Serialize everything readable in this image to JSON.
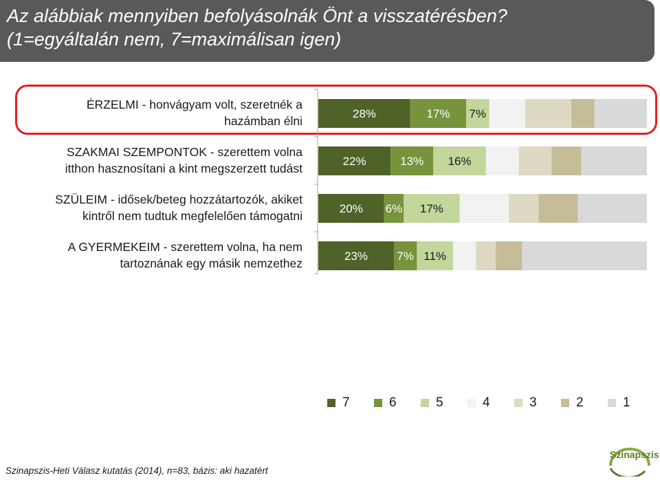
{
  "title": {
    "line1": "Az alábbiak mennyiben befolyásolnák Önt a visszatérésben?",
    "line2": "(1=egyáltalán nem, 7=maximálisan igen)"
  },
  "chart_data": {
    "type": "bar",
    "orientation": "horizontal-stacked-100",
    "categories": [
      [
        "ÉRZELMI - honvágyam volt, szeretnék a",
        "hazámban élni"
      ],
      [
        "SZAKMAI SZEMPONTOK - szerettem volna",
        "itthon hasznosítani a kint megszerzett tudást"
      ],
      [
        "SZÜLEIM - idősek/beteg hozzátartozók, akiket",
        "kintről nem tudtuk megfelelően támogatni"
      ],
      [
        "A GYERMEKEIM - szerettem volna, ha nem",
        "tartoznának egy másik nemzethez"
      ]
    ],
    "series": [
      {
        "name": "7",
        "color": "#4f6228",
        "values": [
          28,
          22,
          20,
          23
        ],
        "labels": [
          "28%",
          "22%",
          "20%",
          "23%"
        ]
      },
      {
        "name": "6",
        "color": "#77933c",
        "values": [
          17,
          13,
          6,
          7
        ],
        "labels": [
          "17%",
          "13%",
          "6%",
          "7%"
        ]
      },
      {
        "name": "5",
        "color": "#c3d69b",
        "values": [
          7,
          16,
          17,
          11
        ],
        "labels": [
          "7%",
          "16%",
          "17%",
          "11%"
        ]
      },
      {
        "name": "4",
        "color": "#f2f2f2",
        "values": [
          11,
          10,
          15,
          7
        ],
        "labels": [
          "",
          "",
          "",
          ""
        ]
      },
      {
        "name": "3",
        "color": "#ddd9c3",
        "values": [
          14,
          10,
          9,
          6
        ],
        "labels": [
          "",
          "",
          "",
          ""
        ]
      },
      {
        "name": "2",
        "color": "#c4bd97",
        "values": [
          7,
          9,
          12,
          8
        ],
        "labels": [
          "",
          "",
          "",
          ""
        ]
      },
      {
        "name": "1",
        "color": "#d9d9d9",
        "values": [
          16,
          20,
          21,
          38
        ],
        "labels": [
          "",
          "",
          "",
          ""
        ]
      }
    ],
    "xlim": [
      0,
      100
    ],
    "legend_position": "bottom",
    "highlighted_category": 0
  },
  "footnote": "Szinapszis-Heti Válasz kutatás (2014), n=83, bázis: aki hazatért",
  "logo_text": "Szinapszis"
}
